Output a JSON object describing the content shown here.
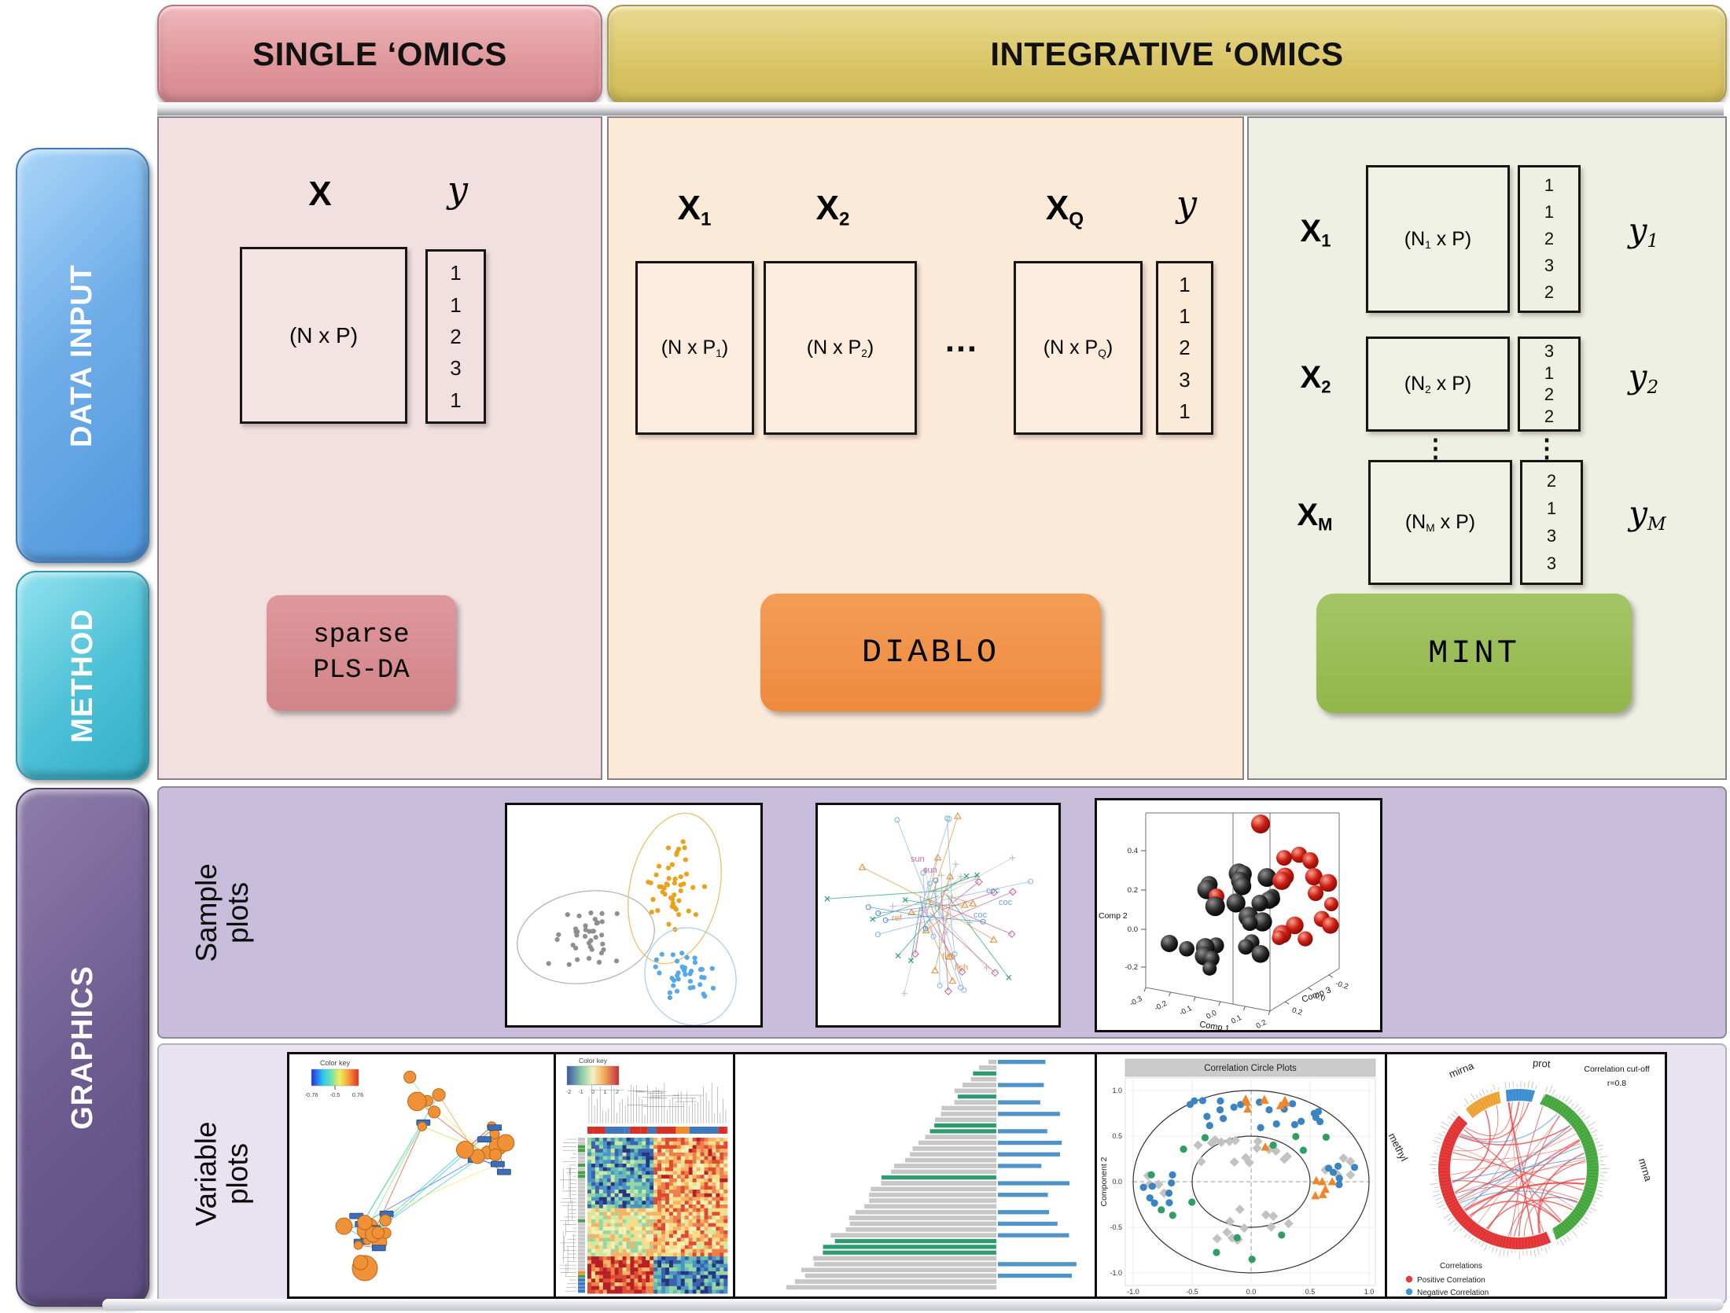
{
  "headers": {
    "single": "SINGLE ‘OMICS",
    "integrative": "INTEGRATIVE ‘OMICS"
  },
  "sidebar": {
    "data_input": "DATA INPUT",
    "method": "METHOD",
    "graphics": "GRAPHICS"
  },
  "single_panel": {
    "x_label": "X",
    "y_label": "y",
    "matrix_dim": "(N x P)",
    "y_values": [
      "1",
      "1",
      "2",
      "3",
      "1"
    ],
    "method_line1": "sparse",
    "method_line2": "PLS-DA"
  },
  "diablo_panel": {
    "x_base": "X",
    "ellipsis": "…",
    "y_label": "y",
    "block1": {
      "sub": "1",
      "dim_pre": "(N x P",
      "dim_sub": "1",
      "dim_post": ")"
    },
    "block2": {
      "sub": "2",
      "dim_pre": "(N x P",
      "dim_sub": "2",
      "dim_post": ")"
    },
    "blockq": {
      "sub": "Q",
      "dim_pre": "(N x P",
      "dim_sub": "Q",
      "dim_post": ")"
    },
    "y_values": [
      "1",
      "1",
      "2",
      "3",
      "1"
    ],
    "method": "DIABLO"
  },
  "mint_panel": {
    "x_base": "X",
    "y_base": "y",
    "dots": "⋮",
    "row1": {
      "sub": "1",
      "dim_pre": "(N",
      "dim_sub": "1",
      "dim_post": " x P)",
      "y_values": [
        "1",
        "1",
        "2",
        "3",
        "2"
      ]
    },
    "row2": {
      "sub": "2",
      "dim_pre": "(N",
      "dim_sub": "2",
      "dim_post": " x P)",
      "y_values": [
        "3",
        "1",
        "2",
        "2"
      ]
    },
    "rowm": {
      "sub": "M",
      "dim_pre": "(N",
      "dim_sub": "M",
      "dim_post": " x P)",
      "y_values": [
        "2",
        "1",
        "3",
        "3"
      ]
    },
    "method": "MINT"
  },
  "graphics": {
    "sample_line1": "Sample",
    "sample_line2": "plots",
    "variable_line1": "Variable",
    "variable_line2": "plots"
  },
  "plots": {
    "network": {
      "key_title": "Color key",
      "key_ticks": [
        "-0.76",
        "-0.5",
        "0.76"
      ]
    },
    "heatmap": {
      "key_title": "Color key",
      "key_ticks": [
        "-2",
        "-1",
        "0",
        "1",
        "2"
      ]
    },
    "arrow": {
      "words": [
        {
          "t": "sun",
          "c": "#c55fa4"
        },
        {
          "t": "coc",
          "c": "#5b93d4"
        },
        {
          "t": "fish",
          "c": "#e2913f"
        },
        {
          "t": "ref",
          "c": "#e2913f"
        }
      ]
    },
    "plot3d": {
      "xlabel": "Comp 1",
      "ylabel": "Comp 2",
      "zlabel": "Comp 3",
      "yticks": [
        "0.4",
        "0.2",
        "0.0",
        "-0.2"
      ],
      "xticks": [
        "-0.3",
        "-0.2",
        "-0.1",
        "0.0",
        "0.1",
        "0.2"
      ],
      "zticks": [
        "-0.2",
        "0.0",
        "0.2"
      ]
    },
    "corr": {
      "title": "Correlation Circle Plots",
      "ylabel": "Component 2",
      "yticks": [
        "1.0",
        "0.5",
        "0.0",
        "-0.5",
        "-1.0"
      ],
      "xticks": [
        "-1.0",
        "-0.5",
        "0.0",
        "0.5",
        "1.0"
      ]
    },
    "circos": {
      "cutoff1": "Correlation cut-off",
      "cutoff2": "r=0.8",
      "mirna": "mirna",
      "prot": "prot",
      "mrna": "mrna",
      "methyl": "methyl",
      "legend_title": "Correlations",
      "legend_pos": "Positive Correlation",
      "legend_neg": "Negative Correlation",
      "pos_color": "#e8393d",
      "neg_color": "#3f8fd2"
    }
  },
  "colors": {
    "single_header": "#dd9296",
    "integrative_header": "#d7c261",
    "data_input": "#4f97dd",
    "method": "#3cb8cf",
    "graphics": "#6c5b8f",
    "sparse_btn": "#d28488",
    "diablo_btn": "#ee8a3e",
    "mint_btn": "#92b64b",
    "single_bg": "#f2e0e0",
    "diablo_bg": "#fcead9",
    "mint_bg": "#edf0e2",
    "sample_row_bg": "#c8bedb",
    "variable_row_bg": "#e8e3f0"
  }
}
